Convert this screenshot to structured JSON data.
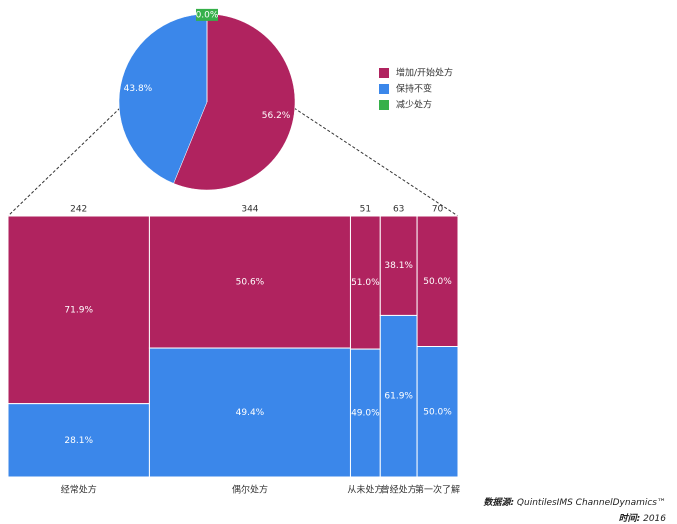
{
  "chart_data": [
    {
      "type": "pie",
      "categories": [
        "增加/开始处方",
        "保持不变",
        "减少处方"
      ],
      "values": [
        56.2,
        43.8,
        0.0
      ],
      "value_labels": [
        "56.2%",
        "43.8%",
        "0.0%"
      ],
      "colors": [
        "#b0235f",
        "#3b87ea",
        "#36b04a"
      ],
      "legend": "right"
    },
    {
      "type": "mekko",
      "categories": [
        "经常处方",
        "偶尔处方",
        "从未处方",
        "曾经处方",
        "第一次了解"
      ],
      "widths": [
        242,
        344,
        51,
        63,
        70
      ],
      "series": [
        {
          "color": "#b0235f",
          "values": [
            71.9,
            50.6,
            51.0,
            38.1,
            50.0
          ],
          "value_labels": [
            "71.9%",
            "50.6%",
            "51.0%",
            "38.1%",
            "50.0%"
          ]
        },
        {
          "color": "#3b87ea",
          "values": [
            28.1,
            49.4,
            49.0,
            61.9,
            50.0
          ],
          "value_labels": [
            "28.1%",
            "49.4%",
            "49.0%",
            "61.9%",
            "50.0%"
          ]
        }
      ]
    }
  ],
  "footer": {
    "source_label": "数据源:",
    "source": "QuintilesIMS ChannelDynamics™",
    "date_label": "时间:",
    "date": "2016"
  }
}
